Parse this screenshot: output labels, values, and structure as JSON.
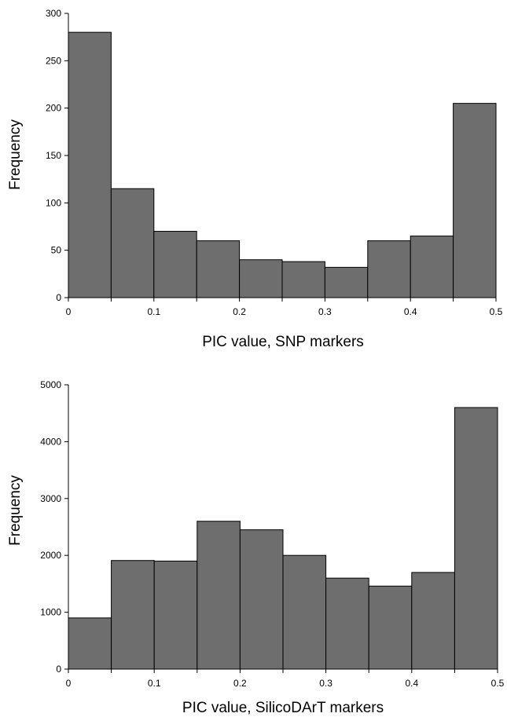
{
  "chart_data": [
    {
      "type": "bar",
      "xlabel": "PIC value, SNP markers",
      "ylabel": "Frequency",
      "bin_edges": [
        0,
        0.05,
        0.1,
        0.15,
        0.2,
        0.25,
        0.3,
        0.35,
        0.4,
        0.45,
        0.5
      ],
      "values": [
        280,
        115,
        70,
        60,
        40,
        38,
        32,
        60,
        65,
        205
      ],
      "ylim": [
        0,
        300
      ],
      "yticks": [
        0,
        50,
        100,
        150,
        200,
        250,
        300
      ],
      "xticks": [
        0,
        0.1,
        0.2,
        0.3,
        0.4,
        0.5
      ],
      "xtick_labels": [
        "0",
        "0.1",
        "0.2",
        "0.3",
        "0.4",
        "0.5"
      ],
      "grid": false,
      "bar_color": "#6e6e6e"
    },
    {
      "type": "bar",
      "xlabel": "PIC value, SilicoDArT markers",
      "ylabel": "Frequency",
      "bin_edges": [
        0,
        0.05,
        0.1,
        0.15,
        0.2,
        0.25,
        0.3,
        0.35,
        0.4,
        0.45,
        0.5
      ],
      "values": [
        900,
        1910,
        1900,
        2600,
        2450,
        2000,
        1600,
        1460,
        1700,
        4600
      ],
      "ylim": [
        0,
        5000
      ],
      "yticks": [
        0,
        1000,
        2000,
        3000,
        4000,
        5000
      ],
      "xticks": [
        0,
        0.1,
        0.2,
        0.3,
        0.4,
        0.5
      ],
      "xtick_labels": [
        "0",
        "0.1",
        "0.2",
        "0.3",
        "0.4",
        "0.5"
      ],
      "grid": false,
      "bar_color": "#6e6e6e"
    }
  ]
}
